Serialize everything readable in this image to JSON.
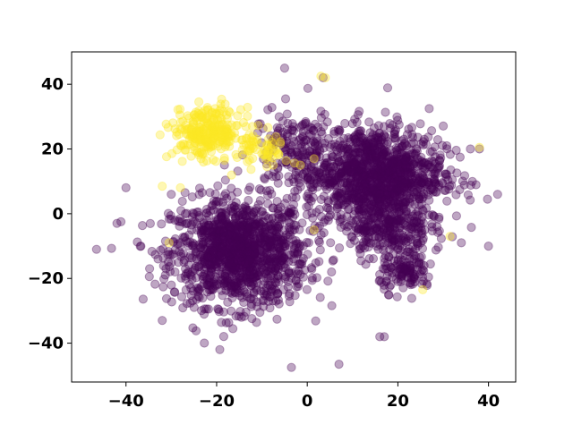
{
  "chart_data": {
    "type": "scatter",
    "title": "",
    "xlabel": "",
    "ylabel": "",
    "xlim": [
      -52,
      46
    ],
    "ylim": [
      -52,
      50
    ],
    "xticks": [
      -40,
      -20,
      0,
      20,
      40
    ],
    "yticks": [
      -40,
      -20,
      0,
      20,
      40
    ],
    "xtick_labels": [
      "−40",
      "−20",
      "0",
      "20",
      "40"
    ],
    "ytick_labels": [
      "−40",
      "−20",
      "0",
      "20",
      "40"
    ],
    "grid": false,
    "legend": "none",
    "point_alpha": 0.35,
    "series": [
      {
        "color": "#440154",
        "clusters": [
          {
            "center": [
              -15,
              -12
            ],
            "spread": [
              10,
              11
            ],
            "count": 1300
          },
          {
            "center": [
              15,
              12
            ],
            "spread": [
              10,
              10
            ],
            "count": 1200
          },
          {
            "center": [
              18,
              -5
            ],
            "spread": [
              6,
              6
            ],
            "count": 250
          },
          {
            "center": [
              22,
              -18
            ],
            "spread": [
              4,
              4
            ],
            "count": 120
          },
          {
            "center": [
              -3,
              20
            ],
            "spread": [
              6,
              8
            ],
            "count": 150
          }
        ],
        "outliers": [
          [
            -46.5,
            -11
          ],
          [
            -42,
            -3
          ],
          [
            -40,
            8
          ],
          [
            -3.5,
            -47.5
          ],
          [
            7,
            -46.5
          ],
          [
            -5,
            45
          ],
          [
            3.5,
            42
          ],
          [
            17,
            -38
          ],
          [
            16,
            -38
          ],
          [
            34,
            -9
          ],
          [
            40,
            -10
          ],
          [
            38,
            20
          ],
          [
            42,
            6
          ],
          [
            36,
            20
          ],
          [
            -30,
            6
          ]
        ]
      },
      {
        "color": "#fde725",
        "clusters": [
          {
            "center": [
              -22,
              25
            ],
            "spread": [
              5,
              5
            ],
            "count": 280
          },
          {
            "center": [
              -10,
              20
            ],
            "spread": [
              4,
              4
            ],
            "count": 60
          }
        ],
        "outliers": [
          [
            3,
            42.5
          ],
          [
            4,
            42
          ],
          [
            31.5,
            -7
          ],
          [
            25.5,
            -23.5
          ],
          [
            38,
            20.5
          ],
          [
            -28,
            8
          ],
          [
            -30.5,
            -9
          ],
          [
            -32,
            8.5
          ],
          [
            -7.5,
            15
          ],
          [
            -1.5,
            15
          ],
          [
            1.5,
            17
          ],
          [
            1.5,
            -5
          ]
        ]
      }
    ]
  }
}
